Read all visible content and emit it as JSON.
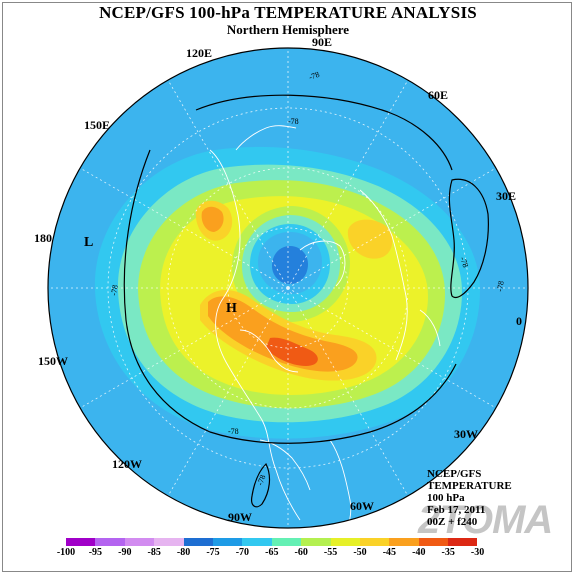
{
  "header": {
    "title": "NCEP/GFS 100-hPa TEMPERATURE ANALYSIS",
    "subtitle": "Northern Hemisphere"
  },
  "longitude_labels": [
    "90E",
    "120E",
    "60E",
    "150E",
    "30E",
    "180",
    "0",
    "150W",
    "30W",
    "120W",
    "60W",
    "90W"
  ],
  "pressure_centers": {
    "low": "L",
    "high": "H"
  },
  "contour_labels": [
    "-78",
    "-78",
    "-78",
    "-78",
    "-78",
    "-78",
    "-78",
    "-78",
    "-78"
  ],
  "info_block": {
    "line1": "NCEP/GFS",
    "line2": "TEMPERATURE",
    "line3": "100 hPa",
    "line4": "Feb 17, 2011",
    "line5": "00Z + f240"
  },
  "watermark": "2TOMA",
  "colorbar": {
    "labels": [
      "-100",
      "-95",
      "-90",
      "-85",
      "-80",
      "-75",
      "-70",
      "-65",
      "-60",
      "-55",
      "-50",
      "-45",
      "-40",
      "-35",
      "-30"
    ],
    "colors": [
      "#a000c8",
      "#b464f0",
      "#d28cf0",
      "#e6b4f0",
      "#1e6ed2",
      "#1e9be6",
      "#32c8f0",
      "#64f0b4",
      "#b4f050",
      "#e6f028",
      "#fad228",
      "#faa01e",
      "#f05a14",
      "#dc2814"
    ]
  }
}
